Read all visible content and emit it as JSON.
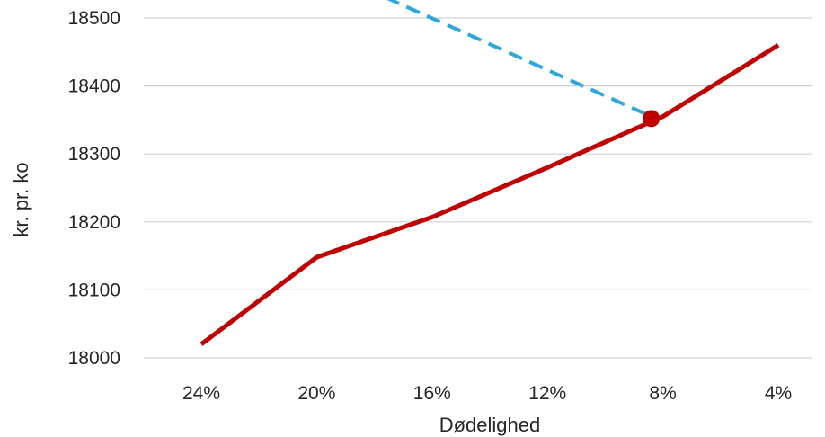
{
  "chart_data": {
    "type": "line",
    "title": "",
    "xlabel": "Dødelighed",
    "ylabel": "kr. pr. ko",
    "categories": [
      "24%",
      "20%",
      "16%",
      "12%",
      "8%",
      "4%"
    ],
    "ylim": [
      18000,
      18500
    ],
    "yticks": [
      "18000",
      "18100",
      "18200",
      "18300",
      "18400",
      "18500"
    ],
    "grid": true,
    "legend": "none",
    "series": [
      {
        "style": "solid",
        "color": "#c00000",
        "x": [
          24,
          20,
          16,
          12,
          8,
          4
        ],
        "values": [
          18020,
          18148,
          18207,
          18280,
          18355,
          18460
        ]
      },
      {
        "style": "dashed",
        "color": "#2ea8dc",
        "x": [
          17.6,
          8.4
        ],
        "values": [
          18530,
          18355
        ]
      }
    ],
    "marker": {
      "x": 8.4,
      "value": 18352,
      "color": "#c00000"
    }
  }
}
